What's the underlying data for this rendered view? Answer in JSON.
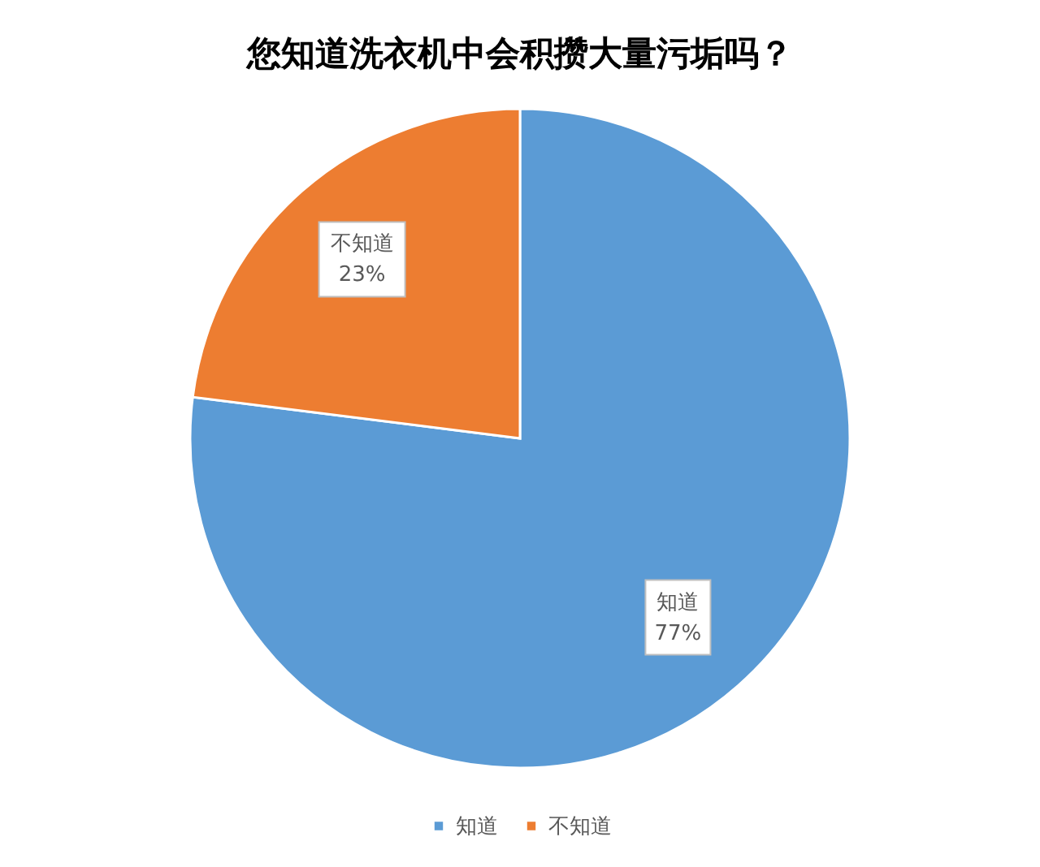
{
  "chart_data": {
    "type": "pie",
    "title": "您知道洗衣机中会积攒大量污垢吗？",
    "categories": [
      "知道",
      "不知道"
    ],
    "values": [
      77,
      23
    ],
    "colors": [
      "#5b9bd5",
      "#ed7d31"
    ],
    "value_labels": [
      "77%",
      "23%"
    ],
    "legend": "bottom"
  }
}
